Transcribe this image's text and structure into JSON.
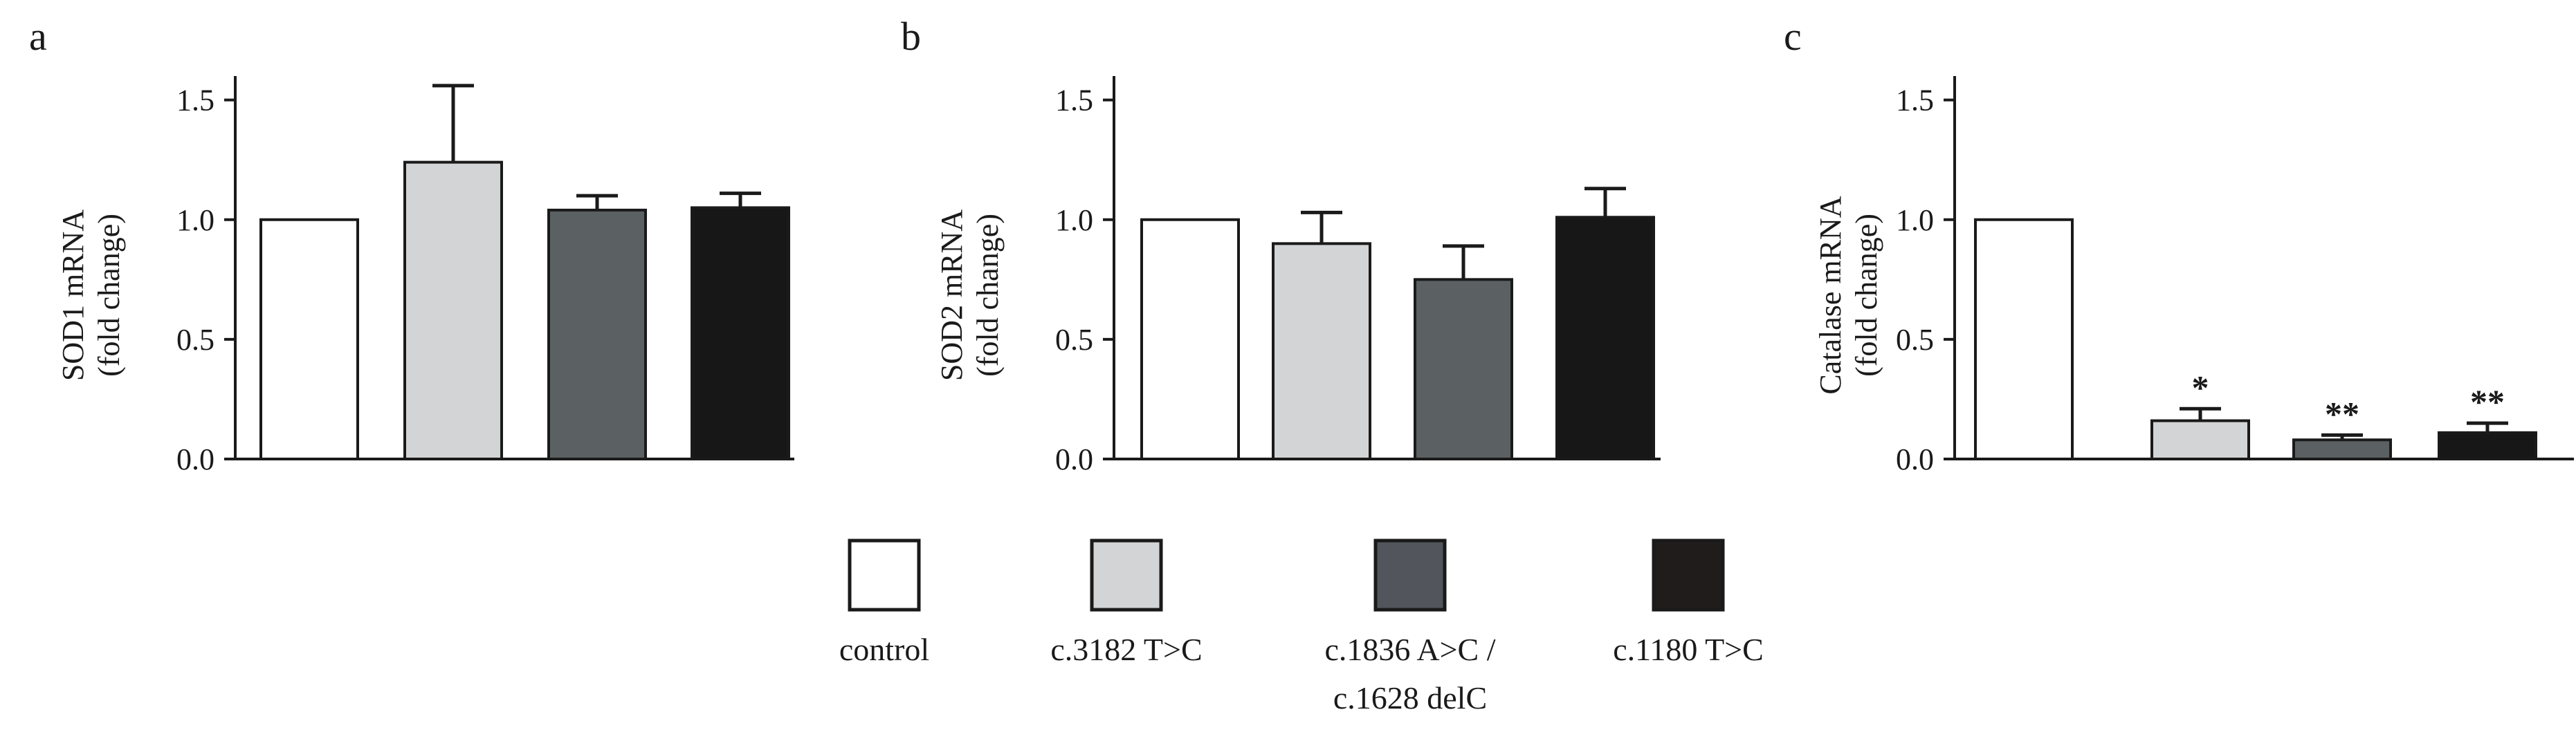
{
  "colors": {
    "control": "#ffffff",
    "c.3182 T>C": "#d3d4d6",
    "c.1836 A>C / c.1628 delC": "#5b6163",
    "c.1180 T>C": "#171717"
  },
  "legend": {
    "items": [
      {
        "label_lines": [
          "control"
        ],
        "color": "#ffffff"
      },
      {
        "label_lines": [
          "c.3182 T>C"
        ],
        "color": "#d3d4d6"
      },
      {
        "label_lines": [
          "c.1836 A>C /",
          "c.1628 delC"
        ],
        "color": "#52565c"
      },
      {
        "label_lines": [
          "c.1180 T>C"
        ],
        "color": "#201c1c"
      }
    ]
  },
  "chart_data": [
    {
      "panel": "a",
      "type": "bar",
      "categories": [
        "control",
        "c.3182 T>C",
        "c.1836 A>C / c.1628 delC",
        "c.1180 T>C"
      ],
      "values": [
        1.0,
        1.24,
        1.04,
        1.05
      ],
      "errors": [
        0,
        0.32,
        0.06,
        0.06
      ],
      "significance": [
        "",
        "",
        "",
        ""
      ],
      "ylabel_lines": [
        "SOD1 mRNA",
        "(fold change)"
      ],
      "ylim": [
        0,
        1.6
      ],
      "yticks": [
        "0.0",
        "0.5",
        "1.0",
        "1.5"
      ],
      "grid": false
    },
    {
      "panel": "b",
      "type": "bar",
      "categories": [
        "control",
        "c.3182 T>C",
        "c.1836 A>C / c.1628 delC",
        "c.1180 T>C"
      ],
      "values": [
        1.0,
        0.9,
        0.75,
        1.01
      ],
      "errors": [
        0,
        0.13,
        0.14,
        0.12
      ],
      "significance": [
        "",
        "",
        "",
        ""
      ],
      "ylabel_lines": [
        "SOD2 mRNA",
        "(fold change)"
      ],
      "ylim": [
        0,
        1.6
      ],
      "yticks": [
        "0.0",
        "0.5",
        "1.0",
        "1.5"
      ],
      "grid": false
    },
    {
      "panel": "c",
      "type": "bar",
      "categories": [
        "control",
        "c.3182 T>C",
        "c.1836 A>C / c.1628 delC",
        "c.1180 T>C"
      ],
      "values": [
        1.0,
        0.16,
        0.08,
        0.11
      ],
      "errors": [
        0,
        0.05,
        0.02,
        0.04
      ],
      "significance": [
        "",
        "*",
        "**",
        "**"
      ],
      "ylabel_lines": [
        "Catalase  mRNA",
        "(fold change)"
      ],
      "ylim": [
        0,
        1.6
      ],
      "yticks": [
        "0.0",
        "0.5",
        "1.0",
        "1.5"
      ],
      "grid": false
    }
  ]
}
